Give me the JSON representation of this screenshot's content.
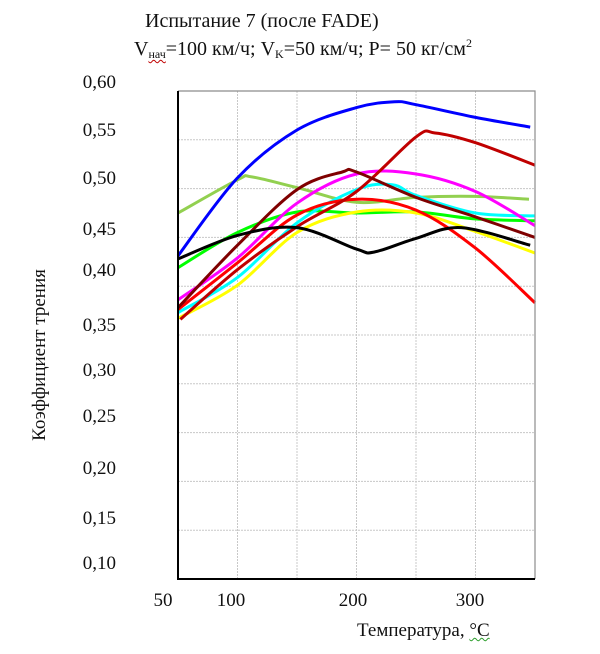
{
  "title": {
    "line1": "Испытание 7 (после FADE)",
    "v_nach_symbol": "V",
    "v_nach_sub": "нач",
    "v_nach_value": "=100 км/ч; ",
    "v_k_symbol": "V",
    "v_k_sub": "K",
    "v_k_value": "=50 км/ч; P= 50 кг/см",
    "p_unit_sup": "2"
  },
  "chart_data": {
    "type": "line",
    "title": "Испытание 7 (после FADE) Vнач=100 км/ч; VK=50 км/ч; P= 50 кг/см2",
    "xlabel": "Температура, °C",
    "ylabel": "Коэффициент трения",
    "xlabel_text": "Температура, ",
    "xlabel_unit": "°C",
    "xlim": [
      50,
      350
    ],
    "ylim": [
      0.1,
      0.6
    ],
    "grid": true,
    "x_grid": [
      100,
      150,
      200,
      250,
      300
    ],
    "y_grid": [
      0.15,
      0.2,
      0.25,
      0.3,
      0.35,
      0.4,
      0.45,
      0.5,
      0.55
    ],
    "x_tick_labels": [
      {
        "value": 50,
        "label": "50"
      },
      {
        "value": 100,
        "label": "100"
      },
      {
        "value": 200,
        "label": "200"
      },
      {
        "value": 300,
        "label": "300"
      }
    ],
    "y_tick_labels": [
      "0,60",
      "0,55",
      "0,50",
      "0,45",
      "0,40",
      "0,35",
      "0,30",
      "0,25",
      "0,20",
      "0,15",
      "0,10"
    ],
    "y_tick_values": [
      0.6,
      0.55,
      0.5,
      0.45,
      0.4,
      0.35,
      0.3,
      0.25,
      0.2,
      0.15,
      0.1
    ],
    "series": [
      {
        "name": "blue",
        "color": "#0000ff",
        "x": [
          50,
          100,
          150,
          200,
          232,
          250,
          300,
          346
        ],
        "y": [
          0.431,
          0.511,
          0.56,
          0.583,
          0.589,
          0.586,
          0.573,
          0.563
        ]
      },
      {
        "name": "dark-red",
        "color": "#c00000",
        "x": [
          52,
          100,
          150,
          200,
          250,
          266,
          300,
          350
        ],
        "y": [
          0.366,
          0.417,
          0.461,
          0.497,
          0.553,
          0.557,
          0.547,
          0.524
        ]
      },
      {
        "name": "magenta",
        "color": "#ff00ff",
        "x": [
          50,
          100,
          150,
          200,
          250,
          300,
          350
        ],
        "y": [
          0.386,
          0.429,
          0.485,
          0.515,
          0.515,
          0.497,
          0.462
        ]
      },
      {
        "name": "maroon",
        "color": "#7f0000",
        "x": [
          50,
          100,
          150,
          188,
          200,
          250,
          300,
          350
        ],
        "y": [
          0.378,
          0.442,
          0.499,
          0.517,
          0.517,
          0.491,
          0.471,
          0.45
        ]
      },
      {
        "name": "cyan",
        "color": "#00ffff",
        "x": [
          50,
          100,
          150,
          200,
          230,
          250,
          300,
          350
        ],
        "y": [
          0.373,
          0.409,
          0.465,
          0.499,
          0.504,
          0.493,
          0.475,
          0.472
        ]
      },
      {
        "name": "light-green",
        "color": "#92d050",
        "x": [
          50,
          100,
          112,
          150,
          200,
          250,
          300,
          345
        ],
        "y": [
          0.475,
          0.509,
          0.512,
          0.501,
          0.486,
          0.491,
          0.492,
          0.489
        ]
      },
      {
        "name": "red",
        "color": "#ff0000",
        "x": [
          50,
          100,
          150,
          200,
          250,
          300,
          350
        ],
        "y": [
          0.376,
          0.424,
          0.473,
          0.489,
          0.478,
          0.439,
          0.383
        ]
      },
      {
        "name": "yellow",
        "color": "#ffff00",
        "x": [
          50,
          100,
          150,
          200,
          250,
          300,
          350
        ],
        "y": [
          0.367,
          0.401,
          0.455,
          0.476,
          0.475,
          0.456,
          0.434
        ]
      },
      {
        "name": "green",
        "color": "#00ff00",
        "x": [
          50,
          100,
          150,
          200,
          250,
          300,
          350
        ],
        "y": [
          0.419,
          0.455,
          0.476,
          0.475,
          0.476,
          0.469,
          0.467
        ]
      },
      {
        "name": "black",
        "color": "#000000",
        "x": [
          50,
          100,
          150,
          200,
          215,
          250,
          288,
          346
        ],
        "y": [
          0.428,
          0.452,
          0.46,
          0.438,
          0.435,
          0.449,
          0.46,
          0.442
        ]
      }
    ]
  }
}
